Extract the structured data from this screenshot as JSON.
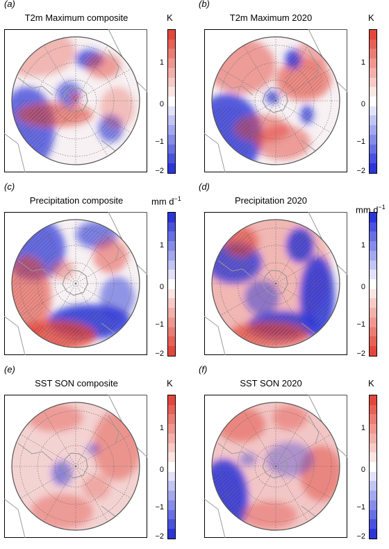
{
  "colors": {
    "warm": "#e3473c",
    "cool": "#2b35d8",
    "frame": "#000000",
    "land": "#9a9a9a"
  },
  "chart_data": [
    {
      "type": "heatmap",
      "panel_label": "(a)",
      "title": "T2m Maximum composite",
      "unit": "K",
      "colorbar": {
        "ticks": [
          "1",
          "0",
          "−1",
          "−2"
        ],
        "range": [
          -2,
          1.75
        ],
        "scheme": "blue-white-red"
      },
      "map": "south-polar-stereographic",
      "hatching": "stippled"
    },
    {
      "type": "heatmap",
      "panel_label": "(b)",
      "title": "T2m Maximum 2020",
      "unit": "K",
      "colorbar": {
        "ticks": [
          "1",
          "0",
          "−1",
          "−2"
        ],
        "range": [
          -2,
          1.75
        ],
        "scheme": "blue-white-red"
      },
      "map": "south-polar-stereographic",
      "hatching": "stippled"
    },
    {
      "type": "heatmap",
      "panel_label": "(c)",
      "title": "Precipitation composite",
      "unit": "mm d",
      "unit_sup": "−1",
      "colorbar": {
        "ticks": [
          "1",
          "0",
          "−1",
          "−2"
        ],
        "range": [
          -2,
          1.75
        ],
        "scheme": "red-white-blue"
      },
      "map": "south-polar-stereographic",
      "hatching": "stippled"
    },
    {
      "type": "heatmap",
      "panel_label": "(d)",
      "title": "Precipitation 2020",
      "unit": "mm d",
      "unit_sup": "−1",
      "colorbar": {
        "ticks": [
          "1",
          "0",
          "−1",
          "−2"
        ],
        "range": [
          -2,
          1.75
        ],
        "scheme": "red-white-blue"
      },
      "map": "south-polar-stereographic",
      "hatching": "stippled"
    },
    {
      "type": "heatmap",
      "panel_label": "(e)",
      "title": "SST SON composite",
      "unit": "K",
      "colorbar": {
        "ticks": [
          "1",
          "0",
          "−1",
          "−2"
        ],
        "range": [
          -2,
          1.75
        ],
        "scheme": "blue-white-red"
      },
      "map": "south-polar-stereographic",
      "hatching": "stippled"
    },
    {
      "type": "heatmap",
      "panel_label": "(f)",
      "title": "SST SON 2020",
      "unit": "K",
      "colorbar": {
        "ticks": [
          "1",
          "0",
          "−1",
          "−2"
        ],
        "range": [
          -2,
          1.75
        ],
        "scheme": "blue-white-red"
      },
      "map": "south-polar-stereographic",
      "hatching": "stippled"
    }
  ]
}
